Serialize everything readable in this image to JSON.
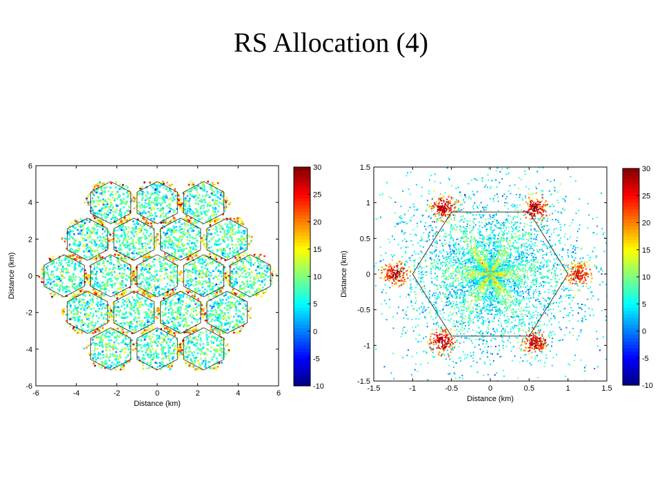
{
  "slide": {
    "title": "RS Allocation (4)"
  },
  "colors": {
    "colormap": "jet",
    "background": "#ffffff",
    "outline": "#000000"
  },
  "chart_data": [
    {
      "type": "heatmap",
      "subtype": "scatter-map",
      "title": "",
      "xlabel": "Distance (km)",
      "ylabel": "Distance (km)",
      "xlim": [
        -6,
        6
      ],
      "ylim": [
        -6,
        6
      ],
      "xticks": [
        -6,
        -4,
        -2,
        0,
        2,
        4,
        6
      ],
      "yticks": [
        6,
        4,
        2,
        0,
        -2,
        -4,
        -6
      ],
      "xtick_labels": [
        "-6",
        "-4",
        "-2",
        "0",
        "2",
        "4",
        "6"
      ],
      "ytick_labels": [
        "6",
        "4",
        "2",
        "0",
        "-2",
        "-4",
        "-6"
      ],
      "colorbar": {
        "range": [
          -10,
          30
        ],
        "ticks": [
          30,
          25,
          20,
          15,
          10,
          5,
          0,
          -5,
          -10
        ],
        "tick_labels": [
          "30",
          "25",
          "20",
          "15",
          "10",
          "5",
          "0",
          "-5",
          "-10"
        ]
      },
      "layout": "19 hexagonal cell sites, each split into 3 sectors with hexagon outlines"
    },
    {
      "type": "heatmap",
      "subtype": "scatter-map",
      "title": "",
      "xlabel": "Distance (km)",
      "ylabel": "Distance (km)",
      "xlim": [
        -1.5,
        1.5
      ],
      "ylim": [
        -1.5,
        1.5
      ],
      "xticks": [
        -1.5,
        -1,
        -0.5,
        0,
        0.5,
        1,
        1.5
      ],
      "yticks": [
        1.5,
        1,
        0.5,
        0,
        -0.5,
        -1,
        -1.5
      ],
      "xtick_labels": [
        "-1.5",
        "-1",
        "-0.5",
        "0",
        "0.5",
        "1",
        "1.5"
      ],
      "ytick_labels": [
        "1.5",
        "1",
        "0.5",
        "0",
        "-0.5",
        "-1",
        "-1.5"
      ],
      "colorbar": {
        "range": [
          -10,
          30
        ],
        "ticks": [
          30,
          25,
          20,
          15,
          10,
          5,
          0,
          -5,
          -10
        ],
        "tick_labels": [
          "30",
          "25",
          "20",
          "15",
          "10",
          "5",
          "0",
          "-5",
          "-10"
        ]
      },
      "hexagon_vertices": [
        [
          -0.5,
          0.87
        ],
        [
          0.5,
          0.87
        ],
        [
          1.0,
          0
        ],
        [
          0.5,
          -0.87
        ],
        [
          -0.5,
          -0.87
        ],
        [
          -1.0,
          0
        ]
      ],
      "hotspots": [
        {
          "x": -0.6,
          "y": 0.92,
          "value": 30
        },
        {
          "x": 0.58,
          "y": 0.92,
          "value": 30
        },
        {
          "x": -1.22,
          "y": 0.0,
          "value": 30
        },
        {
          "x": 1.15,
          "y": 0.0,
          "value": 28
        },
        {
          "x": -0.62,
          "y": -0.95,
          "value": 30
        },
        {
          "x": 0.58,
          "y": -0.95,
          "value": 30
        }
      ]
    }
  ]
}
